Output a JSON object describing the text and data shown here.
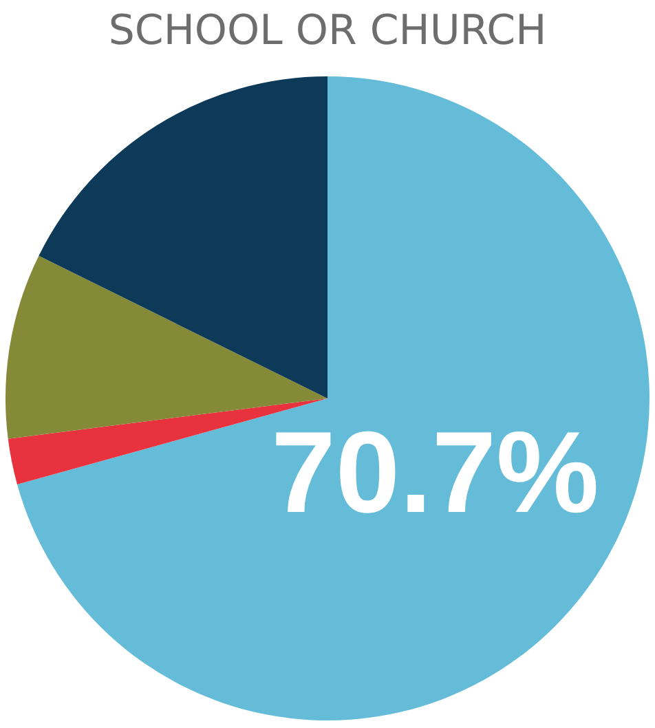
{
  "chart_data": {
    "type": "pie",
    "title": "SCHOOL OR CHURCH",
    "categories": [
      null,
      null,
      null,
      null
    ],
    "values": [
      70.7,
      2.3,
      9.3,
      17.7
    ],
    "colors": [
      "#65bcd9",
      "#e8323e",
      "#858a38",
      "#0d3a58"
    ],
    "value_labels": [
      "70.7%",
      null,
      null,
      null
    ]
  }
}
